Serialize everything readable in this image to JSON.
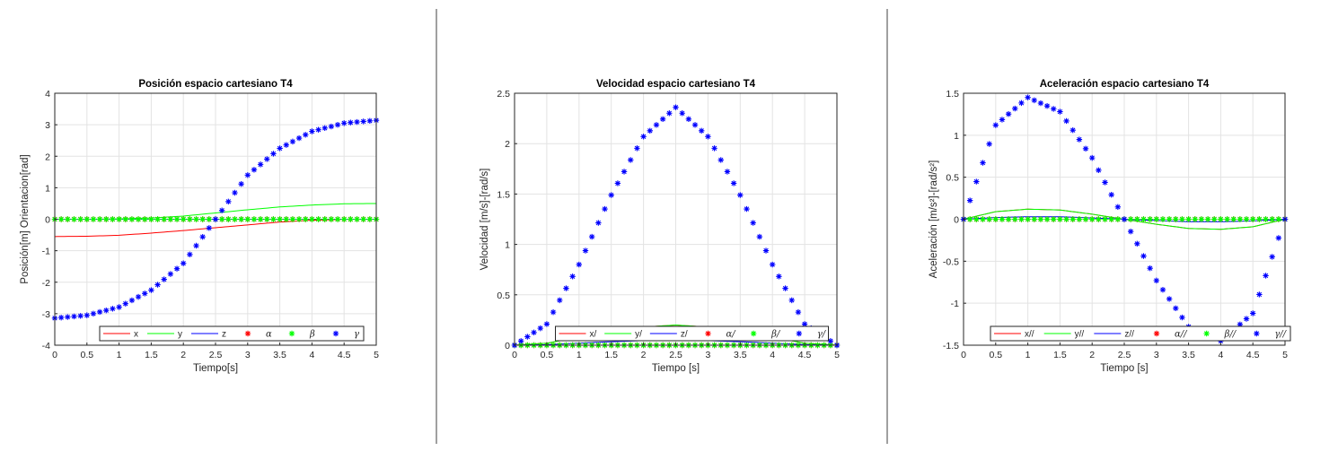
{
  "figure": {
    "background": "#ffffff",
    "divider_color": "#a0a0a0"
  },
  "colors": {
    "red": "#ff0000",
    "green": "#00ff00",
    "blue": "#0000ff",
    "darkgreen": "#2e7d1e",
    "olive": "#6b6b00"
  },
  "chart_data": [
    {
      "type": "line",
      "title": "Posición espacio cartesiano T4",
      "xlabel": "Tiempo[s]",
      "ylabel": "Posición[m] Orientacion[rad]",
      "xlim": [
        0,
        5
      ],
      "ylim": [
        -4,
        4
      ],
      "xticks": [
        0,
        0.5,
        1,
        1.5,
        2,
        2.5,
        3,
        3.5,
        4,
        4.5,
        5
      ],
      "xtick_labels": [
        "0",
        "0.5",
        "1",
        "1.5",
        "2",
        "2.5",
        "3",
        "3.5",
        "4",
        "4.5",
        "5"
      ],
      "yticks": [
        -4,
        -3,
        -2,
        -1,
        0,
        1,
        2,
        3,
        4
      ],
      "ytick_labels": [
        "-4",
        "-3",
        "-2",
        "-1",
        "0",
        "1",
        "2",
        "3",
        "4"
      ],
      "grid": true,
      "legend": {
        "location": "bottom",
        "orientation": "horizontal",
        "entries": [
          "x",
          "y",
          "z",
          "α",
          "β",
          "γ"
        ]
      },
      "x": [
        0,
        0.5,
        1,
        1.5,
        2,
        2.5,
        3,
        3.5,
        4,
        4.5,
        5
      ],
      "series": [
        {
          "name": "x",
          "style": "line",
          "color": "#ff0000",
          "values": [
            -0.55,
            -0.54,
            -0.51,
            -0.44,
            -0.36,
            -0.27,
            -0.18,
            -0.09,
            -0.03,
            0.0,
            0.0
          ]
        },
        {
          "name": "y",
          "style": "line",
          "color": "#00ff00",
          "values": [
            0.0,
            0.0,
            0.01,
            0.04,
            0.1,
            0.2,
            0.3,
            0.39,
            0.45,
            0.49,
            0.5
          ]
        },
        {
          "name": "z",
          "style": "line",
          "color": "#0000ff",
          "values": [
            0,
            0,
            0,
            0,
            0,
            0,
            0,
            0,
            0,
            0,
            0
          ]
        },
        {
          "name": "α",
          "style": "marker",
          "color": "#ff0000",
          "values": [
            0,
            0,
            0,
            0,
            0,
            0,
            0,
            0,
            0,
            0,
            0
          ]
        },
        {
          "name": "β",
          "style": "marker",
          "color": "#00ff00",
          "values": [
            0,
            0,
            0,
            0,
            0,
            0,
            0,
            0,
            0,
            0,
            0
          ]
        },
        {
          "name": "γ",
          "style": "marker",
          "color": "#0000ff",
          "values": [
            -3.14,
            -3.05,
            -2.79,
            -2.25,
            -1.4,
            0.0,
            1.4,
            2.25,
            2.79,
            3.05,
            3.14
          ]
        }
      ]
    },
    {
      "type": "line",
      "title": "Velocidad espacio cartesiano T4",
      "xlabel": "Tiempo [s]",
      "ylabel": "Velocidad [m/s]-[rad/s]",
      "xlim": [
        0,
        5
      ],
      "ylim": [
        0,
        2.5
      ],
      "xticks": [
        0,
        0.5,
        1,
        1.5,
        2,
        2.5,
        3,
        3.5,
        4,
        4.5,
        5
      ],
      "xtick_labels": [
        "0",
        "0.5",
        "1",
        "1.5",
        "2",
        "2.5",
        "3",
        "3.5",
        "4",
        "4.5",
        "5"
      ],
      "yticks": [
        0,
        0.5,
        1,
        1.5,
        2,
        2.5
      ],
      "ytick_labels": [
        "0",
        "0.5",
        "1",
        "1.5",
        "2",
        "2.5"
      ],
      "grid": true,
      "legend": {
        "location": "bottom",
        "orientation": "horizontal",
        "entries": [
          "x/",
          "y/",
          "z/",
          "α/",
          "β/",
          "γ/"
        ]
      },
      "x": [
        0,
        0.5,
        1,
        1.5,
        2,
        2.5,
        3,
        3.5,
        4,
        4.5,
        5
      ],
      "series": [
        {
          "name": "x/",
          "style": "line",
          "color": "#ff0000",
          "values": [
            0,
            0.02,
            0.08,
            0.14,
            0.18,
            0.2,
            0.18,
            0.14,
            0.08,
            0.02,
            0
          ]
        },
        {
          "name": "y/",
          "style": "line",
          "color": "#00ff00",
          "values": [
            0,
            0.02,
            0.08,
            0.14,
            0.18,
            0.2,
            0.18,
            0.14,
            0.08,
            0.02,
            0
          ]
        },
        {
          "name": "z/",
          "style": "line",
          "color": "#0000ff",
          "values": [
            0,
            0.005,
            0.02,
            0.035,
            0.045,
            0.05,
            0.045,
            0.035,
            0.02,
            0.005,
            0
          ]
        },
        {
          "name": "α/",
          "style": "marker",
          "color": "#ff0000",
          "values": [
            0,
            0,
            0,
            0,
            0,
            0,
            0,
            0,
            0,
            0,
            0
          ]
        },
        {
          "name": "β/",
          "style": "marker",
          "color": "#00ff00",
          "values": [
            0,
            0,
            0,
            0,
            0,
            0,
            0,
            0,
            0,
            0,
            0
          ]
        },
        {
          "name": "γ/",
          "style": "marker",
          "color": "#0000ff",
          "values": [
            0,
            0.21,
            0.8,
            1.49,
            2.07,
            2.36,
            2.07,
            1.49,
            0.8,
            0.21,
            0
          ]
        }
      ]
    },
    {
      "type": "line",
      "title": "Aceleración espacio cartesiano T4",
      "xlabel": "Tiempo [s]",
      "ylabel": "Aceleración [m/s²]-[rad/s²]",
      "xlim": [
        0,
        5
      ],
      "ylim": [
        -1.5,
        1.5
      ],
      "xticks": [
        0,
        0.5,
        1,
        1.5,
        2,
        2.5,
        3,
        3.5,
        4,
        4.5,
        5
      ],
      "xtick_labels": [
        "0",
        "0.5",
        "1",
        "1.5",
        "2",
        "2.5",
        "3",
        "3.5",
        "4",
        "4.5",
        "5"
      ],
      "yticks": [
        -1.5,
        -1,
        -0.5,
        0,
        0.5,
        1,
        1.5
      ],
      "ytick_labels": [
        "-1.5",
        "-1",
        "-0.5",
        "0",
        "0.5",
        "1",
        "1.5"
      ],
      "grid": true,
      "legend": {
        "location": "bottom",
        "orientation": "horizontal",
        "entries": [
          "x//",
          "y//",
          "z//",
          "α//",
          "β//",
          "γ//"
        ]
      },
      "x": [
        0,
        0.5,
        1,
        1.5,
        2,
        2.5,
        3,
        3.5,
        4,
        4.5,
        5
      ],
      "series": [
        {
          "name": "x//",
          "style": "line",
          "color": "#ff0000",
          "values": [
            0,
            0.09,
            0.12,
            0.11,
            0.06,
            0,
            -0.06,
            -0.11,
            -0.12,
            -0.09,
            0
          ]
        },
        {
          "name": "y//",
          "style": "line",
          "color": "#00ff00",
          "values": [
            0,
            0.09,
            0.12,
            0.11,
            0.06,
            0,
            -0.06,
            -0.11,
            -0.12,
            -0.09,
            0
          ]
        },
        {
          "name": "z//",
          "style": "line",
          "color": "#0000ff",
          "values": [
            0,
            0.02,
            0.03,
            0.03,
            0.015,
            0,
            -0.015,
            -0.03,
            -0.03,
            -0.02,
            0
          ]
        },
        {
          "name": "α//",
          "style": "marker",
          "color": "#ff0000",
          "values": [
            0,
            0,
            0,
            0,
            0,
            0,
            0,
            0,
            0,
            0,
            0
          ]
        },
        {
          "name": "β//",
          "style": "marker",
          "color": "#00ff00",
          "values": [
            0,
            0,
            0,
            0,
            0,
            0,
            0,
            0,
            0,
            0,
            0
          ]
        },
        {
          "name": "γ//",
          "style": "marker",
          "color": "#0000ff",
          "values": [
            0,
            1.12,
            1.45,
            1.28,
            0.73,
            0,
            -0.73,
            -1.28,
            -1.45,
            -1.12,
            0
          ]
        }
      ]
    }
  ]
}
